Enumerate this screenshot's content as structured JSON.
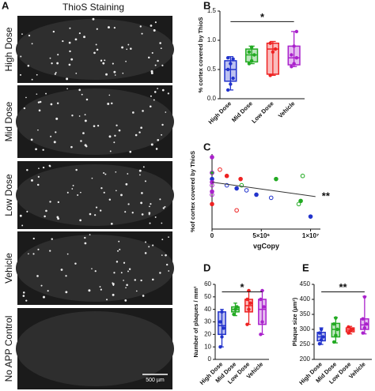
{
  "image_panel": {
    "label": "A",
    "title": "ThioS Staining",
    "rows": [
      "High Dose",
      "Mid Dose",
      "Low Dose",
      "Vehicle",
      "No APP Control"
    ],
    "scale_bar": "500 µm"
  },
  "chart_data": [
    {
      "type": "box",
      "panel_label": "B",
      "ylabel": "% cortex covered by ThioS",
      "ylim": [
        0,
        1.5
      ],
      "yticks": [
        {
          "value": 0,
          "label": "0.0"
        },
        0.5,
        {
          "value": 1,
          "label": "1.0"
        },
        1.5
      ],
      "series": [
        {
          "name": "High Dose",
          "color": "#2233cc",
          "box": {
            "min": 0.15,
            "q1": 0.3,
            "median": 0.5,
            "q3": 0.65,
            "max": 0.72
          },
          "points": [
            0.15,
            0.25,
            0.35,
            0.5,
            0.6,
            0.68,
            0.7
          ]
        },
        {
          "name": "Mid Dose",
          "color": "#22aa22",
          "box": {
            "min": 0.6,
            "q1": 0.63,
            "median": 0.75,
            "q3": 0.85,
            "max": 0.9
          },
          "points": [
            0.6,
            0.65,
            0.75,
            0.8,
            0.88
          ]
        },
        {
          "name": "Low Dose",
          "color": "#ee2222",
          "box": {
            "min": 0.4,
            "q1": 0.42,
            "median": 0.85,
            "q3": 0.95,
            "max": 0.98
          },
          "points": [
            0.4,
            0.8,
            0.85,
            0.95
          ]
        },
        {
          "name": "Vehicle",
          "color": "#aa22cc",
          "box": {
            "min": 0.55,
            "q1": 0.58,
            "median": 0.7,
            "q3": 0.9,
            "max": 1.15
          },
          "points": [
            0.55,
            0.6,
            0.7,
            0.75,
            0.9,
            1.15
          ]
        }
      ],
      "annotation": {
        "text": "*",
        "y": 1.32
      }
    },
    {
      "type": "scatter",
      "panel_label": "C",
      "ylabel": "%of cortex covered by ThioS",
      "xlabel": "vgCopy",
      "xlim": [
        0,
        11000000
      ],
      "xticks": [
        0,
        {
          "value": 5000000,
          "label": "5×10⁶"
        },
        {
          "value": 10000000,
          "label": "1×10⁷"
        }
      ],
      "ylim": [
        0,
        1.2
      ],
      "series": [
        {
          "name": "High Dose",
          "color": "#2233cc",
          "x": [
            0,
            1500000,
            2500000,
            3500000,
            4500000,
            6000000,
            10000000
          ],
          "values": [
            0.8,
            0.7,
            0.65,
            0.62,
            0.55,
            0.5,
            0.2
          ]
        },
        {
          "name": "Mid Dose",
          "color": "#22aa22",
          "x": [
            0,
            3000000,
            6500000,
            8800000,
            9000000,
            9200000
          ],
          "values": [
            0.9,
            0.7,
            0.8,
            0.4,
            0.45,
            0.85
          ]
        },
        {
          "name": "Low Dose",
          "color": "#ee2222",
          "x": [
            0,
            800000,
            1500000,
            2500000,
            2900000
          ],
          "values": [
            0.4,
            0.95,
            0.85,
            0.3,
            0.8
          ]
        },
        {
          "name": "Vehicle",
          "color": "#aa22cc",
          "x": [
            0,
            0,
            0,
            0,
            0,
            0
          ],
          "values": [
            1.15,
            0.9,
            0.75,
            0.7,
            0.6,
            0.55
          ]
        }
      ],
      "fit": {
        "x": [
          0,
          10500000
        ],
        "y": [
          0.75,
          0.52
        ]
      },
      "annotation": {
        "text": "**"
      }
    },
    {
      "type": "box",
      "panel_label": "D",
      "ylabel": "Number of plaques / mm²",
      "ylim": [
        0,
        60
      ],
      "yticks": [
        0,
        10,
        20,
        30,
        40,
        50,
        60
      ],
      "series": [
        {
          "name": "High Dose",
          "color": "#2233cc",
          "box": {
            "min": 10,
            "q1": 20,
            "median": 27,
            "q3": 38,
            "max": 40
          },
          "points": [
            10,
            18,
            25,
            30,
            38
          ]
        },
        {
          "name": "Mid Dose",
          "color": "#22aa22",
          "box": {
            "min": 35,
            "q1": 38,
            "median": 40,
            "q3": 42,
            "max": 45
          },
          "points": [
            36,
            40,
            42
          ]
        },
        {
          "name": "Low Dose",
          "color": "#ee2222",
          "box": {
            "min": 28,
            "q1": 38,
            "median": 43,
            "q3": 48,
            "max": 55
          },
          "points": [
            28,
            40,
            45,
            48,
            55
          ]
        },
        {
          "name": "Vehicle",
          "color": "#aa22cc",
          "box": {
            "min": 20,
            "q1": 28,
            "median": 40,
            "q3": 48,
            "max": 55
          },
          "points": [
            20,
            30,
            42,
            48,
            55
          ]
        }
      ],
      "annotation": {
        "text": "*",
        "y": 54
      }
    },
    {
      "type": "box",
      "panel_label": "E",
      "ylabel": "Plaque size (µm²)",
      "ylim": [
        200,
        450
      ],
      "yticks": [
        200,
        250,
        300,
        350,
        400,
        450
      ],
      "series": [
        {
          "name": "High Dose",
          "color": "#2233cc",
          "box": {
            "min": 250,
            "q1": 262,
            "median": 275,
            "q3": 290,
            "max": 305
          },
          "points": [
            252,
            265,
            275,
            288,
            300
          ]
        },
        {
          "name": "Mid Dose",
          "color": "#22aa22",
          "box": {
            "min": 255,
            "q1": 275,
            "median": 300,
            "q3": 320,
            "max": 340
          },
          "points": [
            258,
            280,
            300,
            318,
            338
          ]
        },
        {
          "name": "Low Dose",
          "color": "#ee2222",
          "box": {
            "min": 285,
            "q1": 292,
            "median": 298,
            "q3": 305,
            "max": 310
          },
          "points": [
            288,
            296,
            300,
            308
          ]
        },
        {
          "name": "Vehicle",
          "color": "#aa22cc",
          "box": {
            "min": 285,
            "q1": 300,
            "median": 315,
            "q3": 335,
            "max": 410
          },
          "points": [
            288,
            305,
            318,
            335,
            408
          ]
        }
      ],
      "annotation": {
        "text": "**",
        "y": 425
      }
    }
  ]
}
